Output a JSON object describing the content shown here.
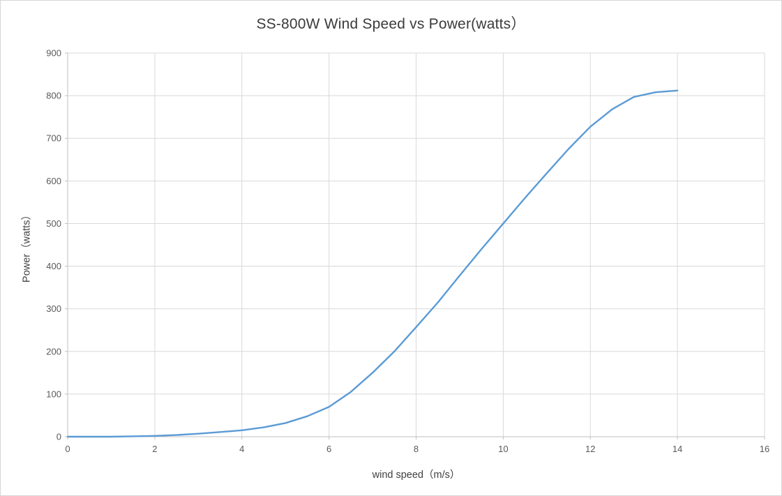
{
  "chart_data": {
    "type": "line",
    "title": "SS-800W Wind Speed vs Power(watts）",
    "xlabel": "wind speed（m/s）",
    "ylabel": "Power（watts）",
    "xlim": [
      0,
      16
    ],
    "ylim": [
      0,
      900
    ],
    "xticks": [
      0,
      2,
      4,
      6,
      8,
      10,
      12,
      14,
      16
    ],
    "yticks": [
      0,
      100,
      200,
      300,
      400,
      500,
      600,
      700,
      800,
      900
    ],
    "grid": true,
    "legend": "none",
    "line_color": "#5B9BD5",
    "grid_color": "#D9D9D9",
    "axis_color": "#BFBFBF",
    "series": [
      {
        "name": "Power",
        "x": [
          0,
          0.5,
          1,
          1.5,
          2,
          2.5,
          3,
          3.5,
          4,
          4.5,
          5,
          5.5,
          6,
          6.5,
          7,
          7.5,
          8,
          8.5,
          9,
          9.5,
          10,
          10.5,
          11,
          11.5,
          12,
          12.5,
          13,
          13.5,
          14
        ],
        "y": [
          0,
          0,
          0,
          1,
          2,
          4,
          7,
          11,
          15,
          22,
          32,
          48,
          70,
          105,
          150,
          200,
          257,
          315,
          378,
          440,
          500,
          560,
          618,
          675,
          727,
          768,
          797,
          808,
          812
        ]
      }
    ]
  }
}
